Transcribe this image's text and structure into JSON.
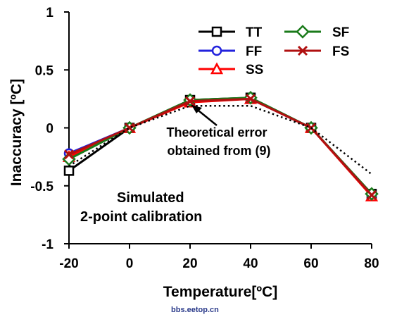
{
  "chart_data": {
    "type": "line",
    "title": "",
    "xlabel": "Temperature[ºC]",
    "ylabel": "Inaccuracy [ºC]",
    "x": [
      -20,
      0,
      20,
      40,
      60,
      80
    ],
    "xticks": [
      "-20",
      "0",
      "20",
      "40",
      "60",
      "80"
    ],
    "yticks": [
      "1",
      "0.5",
      "0",
      "-0.5",
      "-1"
    ],
    "xlim": [
      -20,
      80
    ],
    "ylim": [
      -1,
      1
    ],
    "grid": false,
    "legend_position": "top-right",
    "series": [
      {
        "name": "TT",
        "color": "#000000",
        "marker": "square",
        "values": [
          -0.37,
          0.0,
          0.24,
          0.26,
          0.0,
          -0.57
        ]
      },
      {
        "name": "FF",
        "color": "#2222dd",
        "marker": "circle",
        "values": [
          -0.22,
          0.0,
          0.23,
          0.25,
          0.0,
          -0.58
        ]
      },
      {
        "name": "SS",
        "color": "#ff0000",
        "marker": "triangle",
        "values": [
          -0.25,
          0.0,
          0.22,
          0.25,
          0.0,
          -0.59
        ]
      },
      {
        "name": "SF",
        "color": "#1a7a1a",
        "marker": "diamond",
        "values": [
          -0.27,
          0.0,
          0.24,
          0.26,
          0.0,
          -0.57
        ]
      },
      {
        "name": "FS",
        "color": "#b01010",
        "marker": "x",
        "values": [
          -0.23,
          0.0,
          0.23,
          0.25,
          0.0,
          -0.58
        ]
      },
      {
        "name": "",
        "color": "#000000",
        "style": "dotted",
        "values": [
          -0.33,
          0.0,
          0.19,
          0.19,
          0.0,
          -0.4
        ]
      }
    ],
    "annotations": {
      "theoretical_line1": "Theoretical error",
      "theoretical_line2": "obtained from (9)",
      "calibration_line1": "Simulated",
      "calibration_line2": "2-point calibration"
    },
    "watermark": "bbs.eetop.cn"
  }
}
